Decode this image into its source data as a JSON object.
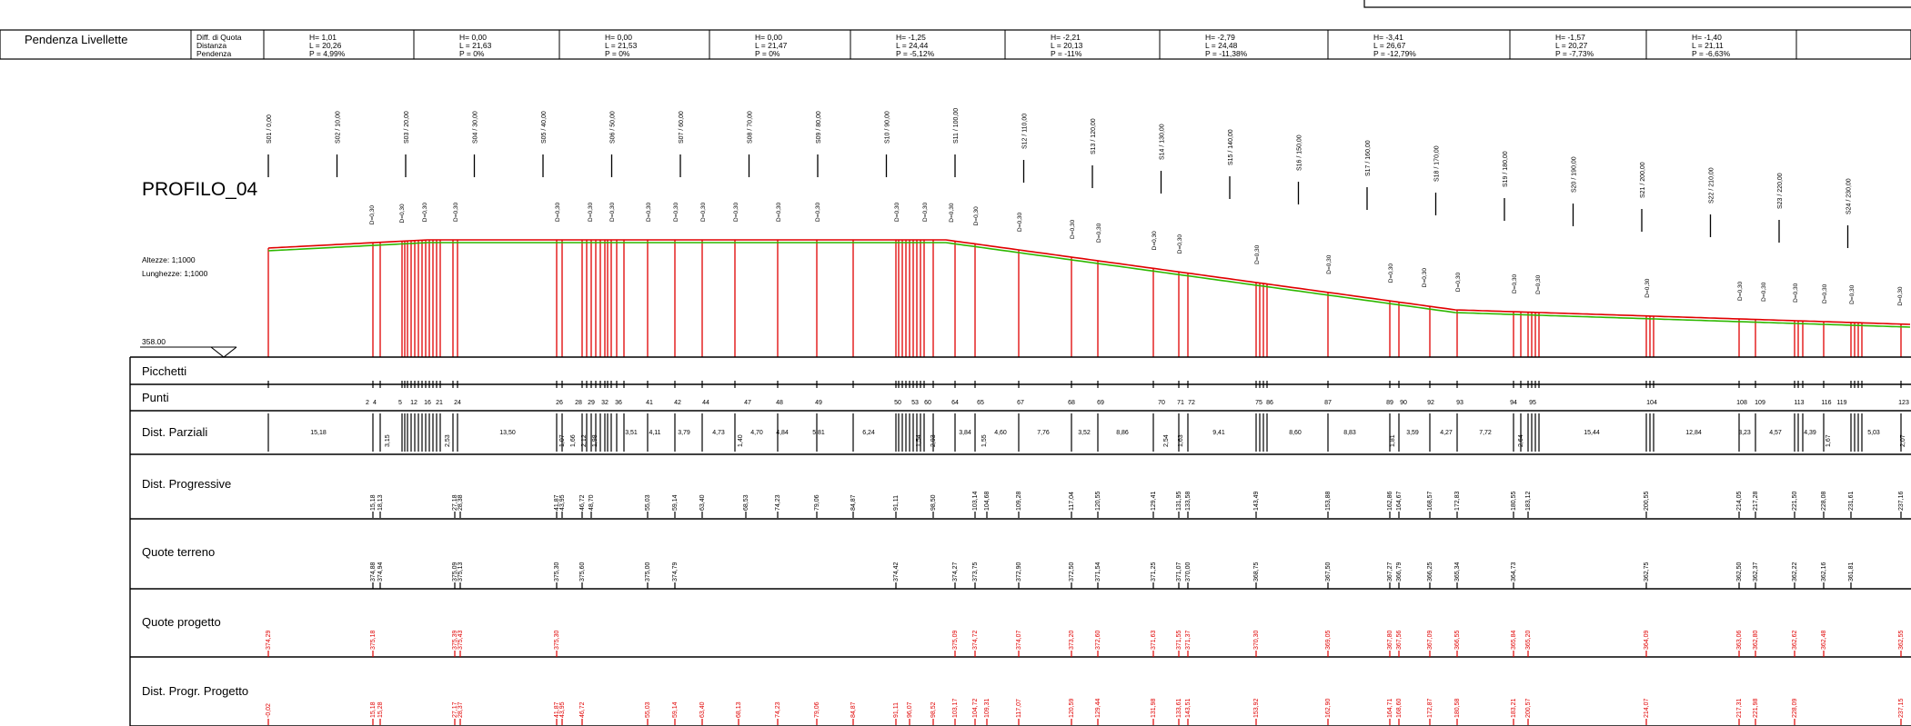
{
  "pendenza": {
    "label": "Pendenza Livellette",
    "sub_labels": [
      "Diff. di Quota",
      "Distanza",
      "Pendenza"
    ],
    "segments": [
      {
        "h": "H= 1,01",
        "l": "L = 20,26",
        "p": "P = 4,99%"
      },
      {
        "h": "H= 0,00",
        "l": "L = 21,63",
        "p": "P = 0%"
      },
      {
        "h": "H= 0,00",
        "l": "L = 21,53",
        "p": "P = 0%"
      },
      {
        "h": "H= 0,00",
        "l": "L = 21,47",
        "p": "P = 0%"
      },
      {
        "h": "H= -1,25",
        "l": "L = 24,44",
        "p": "P = -5,12%"
      },
      {
        "h": "H= -2,21",
        "l": "L = 20,13",
        "p": "P = -11%"
      },
      {
        "h": "H= -2,79",
        "l": "L = 24,48",
        "p": "P = -11,38%"
      },
      {
        "h": "H= -3,41",
        "l": "L = 26,67",
        "p": "P = -12,79%"
      },
      {
        "h": "H= -1,57",
        "l": "L = 20,27",
        "p": "P = -7,73%"
      },
      {
        "h": "H= -1,40",
        "l": "L = 21,11",
        "p": "P = -6,63%"
      }
    ]
  },
  "profile": {
    "title": "PROFILO_04",
    "scale_heights": "Altezze: 1;1000",
    "scale_lengths": "Lunghezze: 1;1000",
    "datum": "358.00",
    "sections": [
      "S01 / 0,00",
      "S02 / 10,00",
      "S03 / 20,00",
      "S04 / 30,00",
      "S05 / 40,00",
      "S06 / 50,00",
      "S07 / 60,00",
      "S08 / 70,00",
      "S09 / 80,00",
      "S10 / 90,00",
      "S11 / 100,00",
      "S12 / 110,00",
      "S13 / 120,00",
      "S14 / 130,00",
      "S15 / 140,00",
      "S16 / 150,00",
      "S17 / 160,00",
      "S18 / 170,00",
      "S19 / 180,00",
      "S20 / 190,00",
      "S21 / 200,00",
      "S22 / 210,00",
      "S23 / 220,00",
      "S24 / 230,00"
    ],
    "d_label": "D=0,30"
  },
  "table": {
    "rows": [
      "Picchetti",
      "Punti",
      "Dist. Parziali",
      "Dist. Progressive",
      "Quote terreno",
      "Quote progetto",
      "Dist. Progr. Progetto"
    ],
    "punti": [
      "2",
      "4",
      "5",
      "12",
      "16",
      "21",
      "24",
      "26",
      "28",
      "29",
      "32",
      "36",
      "41",
      "42",
      "44",
      "47",
      "48",
      "49",
      "50",
      "53",
      "60",
      "64",
      "65",
      "67",
      "68",
      "69",
      "70",
      "71",
      "72",
      "75",
      "86",
      "87",
      "89",
      "90",
      "92",
      "93",
      "94",
      "95",
      "104",
      "108",
      "109",
      "113",
      "116",
      "119",
      "123"
    ],
    "dist_parziali": [
      "15,18",
      "3,15",
      "2,53",
      "13,50",
      "1,07",
      "1,66",
      "2,12",
      "1,98",
      "3,51",
      "4,11",
      "3,79",
      "4,73",
      "1,40",
      "4,70",
      "4,84",
      "5,81",
      "6,24",
      "1,54",
      "2,93",
      "3,84",
      "1,55",
      "4,60",
      "7,76",
      "3,52",
      "8,86",
      "2,54",
      "1,63",
      "9,41",
      "8,60",
      "8,83",
      "1,81",
      "3,59",
      "4,27",
      "7,72",
      "2,64",
      "15,44",
      "12,84",
      "3,23",
      "4,57",
      "4,39",
      "1,67",
      "5,03",
      "2,07"
    ],
    "dist_progressive": [
      "15,18",
      "18,13",
      "27,18",
      "28,38",
      "41,87",
      "43,95",
      "46,72",
      "48,70",
      "55,03",
      "59,14",
      "63,40",
      "68,53",
      "74,23",
      "79,06",
      "84,87",
      "91,11",
      "98,50",
      "103,14",
      "104,68",
      "109,28",
      "117,04",
      "120,55",
      "129,41",
      "131,95",
      "133,58",
      "143,49",
      "153,88",
      "162,86",
      "164,67",
      "168,57",
      "172,83",
      "180,55",
      "183,12",
      "200,55",
      "214,05",
      "217,28",
      "221,50",
      "228,08",
      "231,61",
      "237,16"
    ],
    "quote_terreno": [
      "374,88",
      "374,94",
      "375,09",
      "375,13",
      "375,30",
      "375,60",
      "375,00",
      "374,79",
      "374,42",
      "374,27",
      "373,75",
      "372,90",
      "372,50",
      "371,54",
      "371,25",
      "371,07",
      "370,00",
      "368,75",
      "367,50",
      "367,27",
      "366,79",
      "366,25",
      "365,34",
      "364,73",
      "362,75",
      "362,50",
      "362,37",
      "362,22",
      "362,16",
      "361,81"
    ],
    "quote_progetto": [
      "374,29",
      "375,18",
      "375,39",
      "375,43",
      "375,30",
      "375,09",
      "374,72",
      "374,07",
      "373,20",
      "372,60",
      "371,63",
      "371,55",
      "371,37",
      "370,30",
      "369,05",
      "367,80",
      "367,56",
      "367,09",
      "366,55",
      "365,84",
      "365,20",
      "364,09",
      "363,06",
      "362,80",
      "362,62",
      "362,48",
      "362,55"
    ],
    "dist_progr_progetto": [
      "-0,02",
      "15,18",
      "15,28",
      "27,17",
      "28,37",
      "41,87",
      "43,95",
      "46,72",
      "55,03",
      "59,14",
      "63,40",
      "68,13",
      "74,23",
      "79,06",
      "84,87",
      "91,11",
      "96,07",
      "98,52",
      "103,17",
      "104,72",
      "109,31",
      "117,07",
      "120,59",
      "129,44",
      "131,98",
      "133,61",
      "143,51",
      "153,92",
      "162,90",
      "164,71",
      "168,60",
      "172,87",
      "180,58",
      "183,21",
      "200,57",
      "214,07",
      "217,31",
      "221,98",
      "228,09",
      "237,15"
    ]
  },
  "colors": {
    "ink": "#000000",
    "terrain": "#e00000",
    "project": "#2db800",
    "red_text": "#e00000"
  }
}
